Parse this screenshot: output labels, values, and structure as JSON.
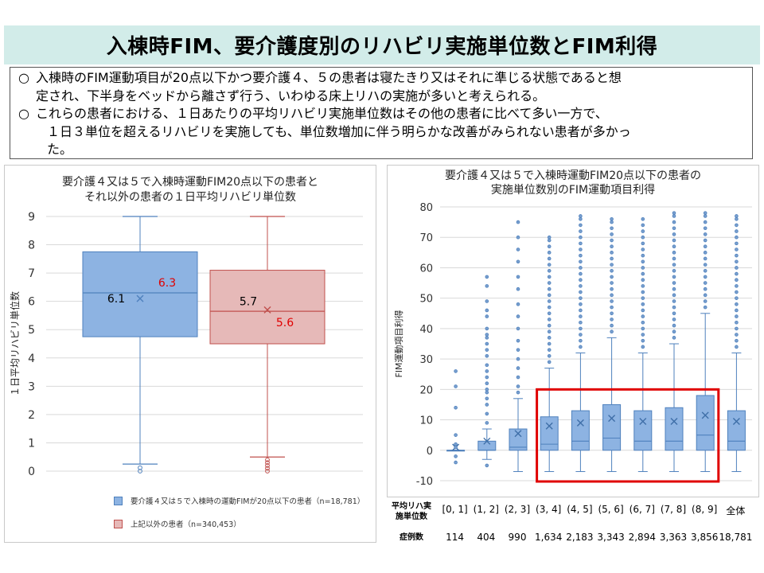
{
  "page": {
    "title": "入棟時FIM、要介護度別のリハビリ実施単位数とFIM利得",
    "notes": [
      {
        "bullet": "○",
        "lines": [
          "入棟時のFIM運動項目が20点以下かつ要介護４、５の患者は寝たきり又はそれに準じる状態であると想",
          "定され、下半身をベッドから離さず行う、いわゆる床上リハの実施が多いと考えられる。"
        ]
      },
      {
        "bullet": "○",
        "lines": [
          "これらの患者における、１日あたりの平均リハビリ実施単位数はその他の患者に比べて多い一方で、",
          "１日３単位を超えるリハビリを実施しても、単位数増加に伴う明らかな改善がみられない患者が多かっ",
          "た。"
        ]
      }
    ]
  },
  "chart_data": [
    {
      "type": "box",
      "title": [
        "要介護４又は５で入棟時運動FIM20点以下の患者と",
        "それ以外の患者の１日平均リハビリ単位数"
      ],
      "ylabel": "１日平均リハビリ単位数",
      "ylim": [
        0,
        9
      ],
      "yticks": [
        0,
        1,
        2,
        3,
        4,
        5,
        6,
        7,
        8,
        9
      ],
      "grid": true,
      "legend_position": "bottom",
      "series": [
        {
          "name": "要介護４又は５で入棟時の運動FIMが20点以下の患者（n=18,781）",
          "color": "#8db3e2",
          "stroke": "#4f81bd",
          "min": 0.25,
          "q1": 4.75,
          "median": 6.3,
          "q3": 7.75,
          "max": 9.0,
          "mean": 6.1,
          "outliers": [
            0.0,
            0.12
          ],
          "mean_label": "6.1",
          "median_label": "6.3"
        },
        {
          "name": "上記以外の患者（n=340,453）",
          "color": "#e6b9b8",
          "stroke": "#c0504d",
          "min": 0.5,
          "q1": 4.5,
          "median": 5.65,
          "q3": 7.1,
          "max": 9.0,
          "mean": 5.7,
          "outliers": [
            0.0,
            0.1,
            0.2,
            0.3,
            0.4
          ],
          "mean_label": "5.7",
          "median_label": "5.6"
        }
      ]
    },
    {
      "type": "box",
      "title": [
        "要介護４又は５で入棟時運動FIM20点以下の患者の",
        "実施単位数別のFIM運動項目利得"
      ],
      "ylabel": "FIM運動項目利得",
      "ylim": [
        -10,
        80
      ],
      "yticks": [
        -10,
        0,
        10,
        20,
        30,
        40,
        50,
        60,
        70,
        80
      ],
      "color": "#8db3e2",
      "stroke": "#4f81bd",
      "highlight": {
        "from": "(3, 4]",
        "to": "(8, 9]",
        "color": "#e00000"
      },
      "row_labels": {
        "units": "平均リハ実施単位数",
        "cases": "症例数"
      },
      "categories": [
        "[0, 1]",
        "(1, 2]",
        "(2, 3]",
        "(3, 4]",
        "(4, 5]",
        "(5, 6]",
        "(6, 7]",
        "(7, 8]",
        "(8, 9]",
        "全体"
      ],
      "counts": [
        "114",
        "404",
        "990",
        "1,634",
        "2,183",
        "3,343",
        "2,894",
        "3,363",
        "3,856",
        "18,781"
      ],
      "boxes": [
        {
          "min": 0,
          "q1": 0,
          "median": 0,
          "q3": 0,
          "max": 0,
          "mean": 1,
          "outliers": [
            -4,
            -2,
            1,
            2,
            5,
            14,
            21,
            26
          ]
        },
        {
          "min": -3,
          "q1": 0,
          "median": 0,
          "q3": 3,
          "max": 7,
          "mean": 3,
          "outliers": [
            -5,
            9,
            12,
            15,
            17,
            19,
            20,
            22,
            24,
            26,
            28,
            31,
            33,
            35,
            37,
            38,
            40,
            44,
            46,
            49,
            54,
            57
          ]
        },
        {
          "min": -7,
          "q1": 0,
          "median": 1,
          "q3": 7,
          "max": 17,
          "mean": 5.5,
          "outliers": [
            19,
            21,
            24,
            27,
            30,
            33,
            36,
            40,
            44,
            48,
            53,
            57,
            62,
            66,
            70,
            75
          ]
        },
        {
          "min": -7,
          "q1": 0,
          "median": 2,
          "q3": 11,
          "max": 27,
          "mean": 8,
          "outliers": [
            29,
            31,
            33,
            35,
            37,
            39,
            41,
            43,
            45,
            47,
            49,
            51,
            53,
            55,
            57,
            59,
            61,
            63,
            65,
            67,
            69,
            70
          ]
        },
        {
          "min": -7,
          "q1": 0,
          "median": 3,
          "q3": 13,
          "max": 32,
          "mean": 9,
          "outliers": [
            34,
            36,
            38,
            40,
            42,
            44,
            46,
            48,
            50,
            52,
            54,
            56,
            58,
            60,
            62,
            64,
            66,
            68,
            70,
            72,
            74,
            76,
            77
          ]
        },
        {
          "min": -7,
          "q1": 0,
          "median": 4,
          "q3": 15,
          "max": 37,
          "mean": 10.5,
          "outliers": [
            39,
            41,
            43,
            45,
            47,
            49,
            51,
            53,
            55,
            57,
            59,
            61,
            63,
            65,
            67,
            69,
            71,
            73,
            75,
            76
          ]
        },
        {
          "min": -7,
          "q1": 0,
          "median": 3,
          "q3": 13,
          "max": 32,
          "mean": 9.5,
          "outliers": [
            34,
            36,
            38,
            40,
            42,
            44,
            46,
            48,
            50,
            52,
            54,
            56,
            58,
            60,
            62,
            64,
            66,
            68,
            70,
            72,
            74,
            76
          ]
        },
        {
          "min": -7,
          "q1": 0,
          "median": 3,
          "q3": 14,
          "max": 35,
          "mean": 9.5,
          "outliers": [
            37,
            39,
            41,
            43,
            45,
            47,
            49,
            51,
            53,
            55,
            57,
            59,
            61,
            63,
            65,
            67,
            69,
            71,
            73,
            75,
            77,
            78
          ]
        },
        {
          "min": -7,
          "q1": 0,
          "median": 5,
          "q3": 18,
          "max": 45,
          "mean": 11.5,
          "outliers": [
            47,
            49,
            51,
            53,
            55,
            57,
            59,
            61,
            63,
            65,
            67,
            69,
            71,
            73,
            75,
            77,
            78
          ]
        },
        {
          "min": -7,
          "q1": 0,
          "median": 3,
          "q3": 13,
          "max": 32,
          "mean": 9.5,
          "outliers": [
            34,
            36,
            38,
            40,
            42,
            44,
            46,
            48,
            50,
            52,
            54,
            56,
            58,
            60,
            62,
            64,
            66,
            68,
            70,
            72,
            74,
            76,
            77
          ]
        }
      ]
    }
  ]
}
